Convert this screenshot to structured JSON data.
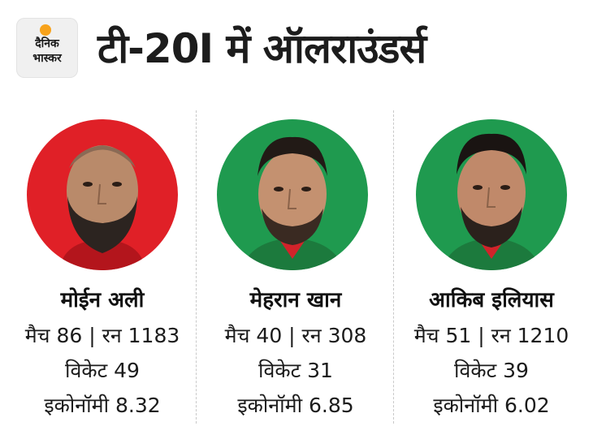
{
  "logo": {
    "line1": "दैनिक",
    "line2": "भास्कर",
    "accent_color": "#f7a21b"
  },
  "title": "टी-20I में ऑलराउंडर्स",
  "players": [
    {
      "name": "मोईन अली",
      "line1": "मैच 86 | रन 1183",
      "line2": "विकेट 49",
      "line3": "इकोनॉमी 8.32",
      "bg_color": "#e02027"
    },
    {
      "name": "मेहरान खान",
      "line1": "मैच 40 | रन 308",
      "line2": "विकेट 31",
      "line3": "इकोनॉमी 6.85",
      "bg_color": "#1f9a4f"
    },
    {
      "name": "आकिब इलियास",
      "line1": "मैच 51 | रन 1210",
      "line2": "विकेट 39",
      "line3": "इकोनॉमी 6.02",
      "bg_color": "#1f9a4f"
    }
  ]
}
